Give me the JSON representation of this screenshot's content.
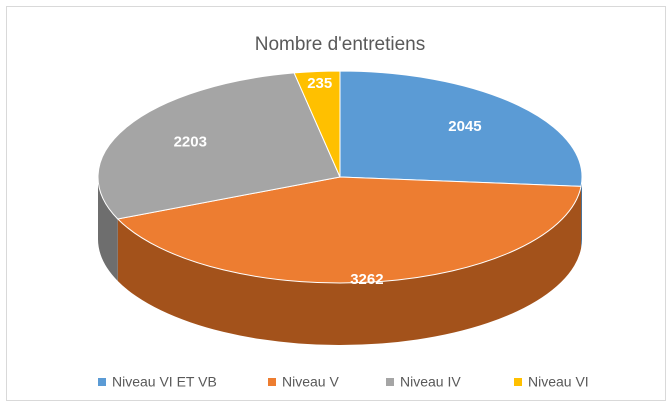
{
  "chart_data": {
    "type": "pie",
    "title": "Nombre d'entretiens",
    "categories": [
      "Niveau VI ET VB",
      "Niveau V",
      "Niveau IV",
      "Niveau VI"
    ],
    "values": [
      2045,
      3262,
      2203,
      235
    ],
    "colors": [
      "#5b9bd5",
      "#ed7d31",
      "#a5a5a5",
      "#ffc000"
    ],
    "side_colors": [
      "#3a6e9c",
      "#a3521b",
      "#6e6e6e",
      "#b38600"
    ],
    "legend": "bottom"
  }
}
